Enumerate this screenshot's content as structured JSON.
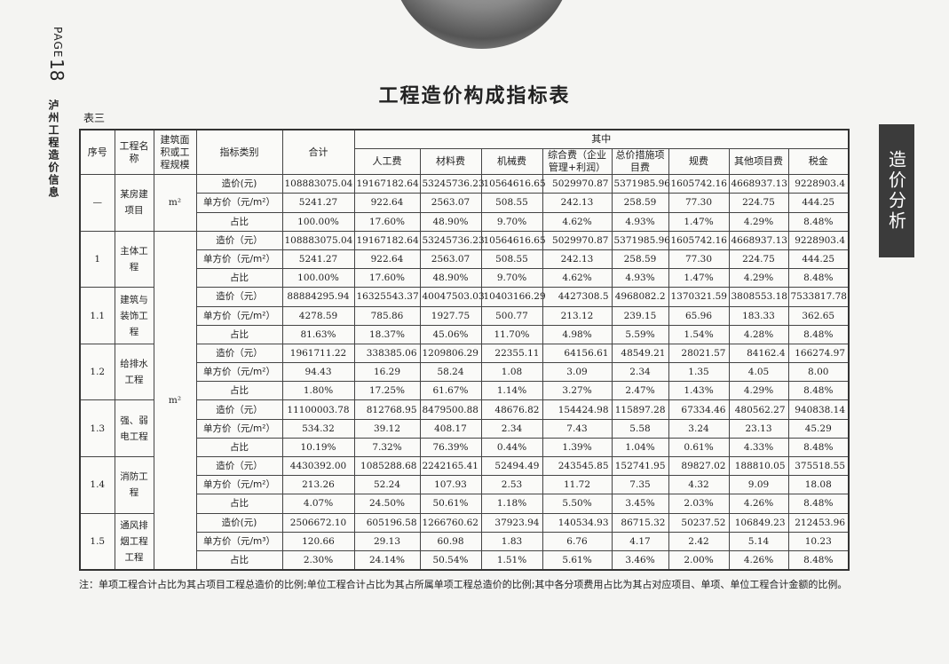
{
  "side": {
    "page_label": "PAGE",
    "page_number": "18",
    "publication": "泸州工程造价信息"
  },
  "section_tab": "造价分析",
  "title": "工程造价构成指标表",
  "table_label": "表三",
  "table": {
    "header": {
      "no": "序号",
      "name": "工程名称",
      "scale": "建筑面积或工程规模",
      "category": "指标类别",
      "total": "合计",
      "group": "其中",
      "columns": [
        "人工费",
        "材料费",
        "机械费",
        "综合费（企业管理+利润）",
        "总价措施项目费",
        "规费",
        "其他项目费",
        "税金"
      ]
    },
    "shared_unit": "m²",
    "groups": [
      {
        "no": "—",
        "name": "某房建项目",
        "unit": "m²",
        "rows": [
          {
            "category": "造价(元)",
            "values": [
              "108883075.04",
              "19167182.64",
              "53245736.23",
              "10564616.65",
              "5029970.87",
              "5371985.96",
              "1605742.16",
              "4668937.13",
              "9228903.4"
            ]
          },
          {
            "category": "单方价（元/m²）",
            "values": [
              "5241.27",
              "922.64",
              "2563.07",
              "508.55",
              "242.13",
              "258.59",
              "77.30",
              "224.75",
              "444.25"
            ]
          },
          {
            "category": "占比",
            "values": [
              "100.00%",
              "17.60%",
              "48.90%",
              "9.70%",
              "4.62%",
              "4.93%",
              "1.47%",
              "4.29%",
              "8.48%"
            ]
          }
        ]
      },
      {
        "no": "1",
        "name": "主体工程",
        "rows": [
          {
            "category": "造价（元）",
            "values": [
              "108883075.04",
              "19167182.64",
              "53245736.23",
              "10564616.65",
              "5029970.87",
              "5371985.96",
              "1605742.16",
              "4668937.13",
              "9228903.4"
            ]
          },
          {
            "category": "单方价（元/m²）",
            "values": [
              "5241.27",
              "922.64",
              "2563.07",
              "508.55",
              "242.13",
              "258.59",
              "77.30",
              "224.75",
              "444.25"
            ]
          },
          {
            "category": "占比",
            "values": [
              "100.00%",
              "17.60%",
              "48.90%",
              "9.70%",
              "4.62%",
              "4.93%",
              "1.47%",
              "4.29%",
              "8.48%"
            ]
          }
        ]
      },
      {
        "no": "1.1",
        "name": "建筑与装饰工程",
        "rows": [
          {
            "category": "造价（元）",
            "values": [
              "88884295.94",
              "16325543.37",
              "40047503.03",
              "10403166.29",
              "4427308.5",
              "4968082.2",
              "1370321.59",
              "3808553.18",
              "7533817.78"
            ]
          },
          {
            "category": "单方价（元/m²）",
            "values": [
              "4278.59",
              "785.86",
              "1927.75",
              "500.77",
              "213.12",
              "239.15",
              "65.96",
              "183.33",
              "362.65"
            ]
          },
          {
            "category": "占比",
            "values": [
              "81.63%",
              "18.37%",
              "45.06%",
              "11.70%",
              "4.98%",
              "5.59%",
              "1.54%",
              "4.28%",
              "8.48%"
            ]
          }
        ]
      },
      {
        "no": "1.2",
        "name": "给排水工程",
        "rows": [
          {
            "category": "造价（元）",
            "values": [
              "1961711.22",
              "338385.06",
              "1209806.29",
              "22355.11",
              "64156.61",
              "48549.21",
              "28021.57",
              "84162.4",
              "166274.97"
            ]
          },
          {
            "category": "单方价（元/m²）",
            "values": [
              "94.43",
              "16.29",
              "58.24",
              "1.08",
              "3.09",
              "2.34",
              "1.35",
              "4.05",
              "8.00"
            ]
          },
          {
            "category": "占比",
            "values": [
              "1.80%",
              "17.25%",
              "61.67%",
              "1.14%",
              "3.27%",
              "2.47%",
              "1.43%",
              "4.29%",
              "8.48%"
            ]
          }
        ]
      },
      {
        "no": "1.3",
        "name": "强、弱电工程",
        "rows": [
          {
            "category": "造价（元）",
            "values": [
              "11100003.78",
              "812768.95",
              "8479500.88",
              "48676.82",
              "154424.98",
              "115897.28",
              "67334.46",
              "480562.27",
              "940838.14"
            ]
          },
          {
            "category": "单方价（元/m²）",
            "values": [
              "534.32",
              "39.12",
              "408.17",
              "2.34",
              "7.43",
              "5.58",
              "3.24",
              "23.13",
              "45.29"
            ]
          },
          {
            "category": "占比",
            "values": [
              "10.19%",
              "7.32%",
              "76.39%",
              "0.44%",
              "1.39%",
              "1.04%",
              "0.61%",
              "4.33%",
              "8.48%"
            ]
          }
        ]
      },
      {
        "no": "1.4",
        "name": "消防工程",
        "rows": [
          {
            "category": "造价（元）",
            "values": [
              "4430392.00",
              "1085288.68",
              "2242165.41",
              "52494.49",
              "243545.85",
              "152741.95",
              "89827.02",
              "188810.05",
              "375518.55"
            ]
          },
          {
            "category": "单方价（元/m²）",
            "values": [
              "213.26",
              "52.24",
              "107.93",
              "2.53",
              "11.72",
              "7.35",
              "4.32",
              "9.09",
              "18.08"
            ]
          },
          {
            "category": "占比",
            "values": [
              "4.07%",
              "24.50%",
              "50.61%",
              "1.18%",
              "5.50%",
              "3.45%",
              "2.03%",
              "4.26%",
              "8.48%"
            ]
          }
        ]
      },
      {
        "no": "1.5",
        "name": "通风排烟工程工程",
        "rows": [
          {
            "category": "造价(元)",
            "values": [
              "2506672.10",
              "605196.58",
              "1266760.62",
              "37923.94",
              "140534.93",
              "86715.32",
              "50237.52",
              "106849.23",
              "212453.96"
            ]
          },
          {
            "category": "单方价（元/m³）",
            "values": [
              "120.66",
              "29.13",
              "60.98",
              "1.83",
              "6.76",
              "4.17",
              "2.42",
              "5.14",
              "10.23"
            ]
          },
          {
            "category": "占比",
            "values": [
              "2.30%",
              "24.14%",
              "50.54%",
              "1.51%",
              "5.61%",
              "3.46%",
              "2.00%",
              "4.26%",
              "8.48%"
            ]
          }
        ]
      }
    ]
  },
  "note": "注：单项工程合计占比为其占项目工程总造价的比例;单位工程合计占比为其占所属单项工程总造价的比例;其中各分项费用占比为其占对应项目、单项、单位工程合计金额的比例。"
}
